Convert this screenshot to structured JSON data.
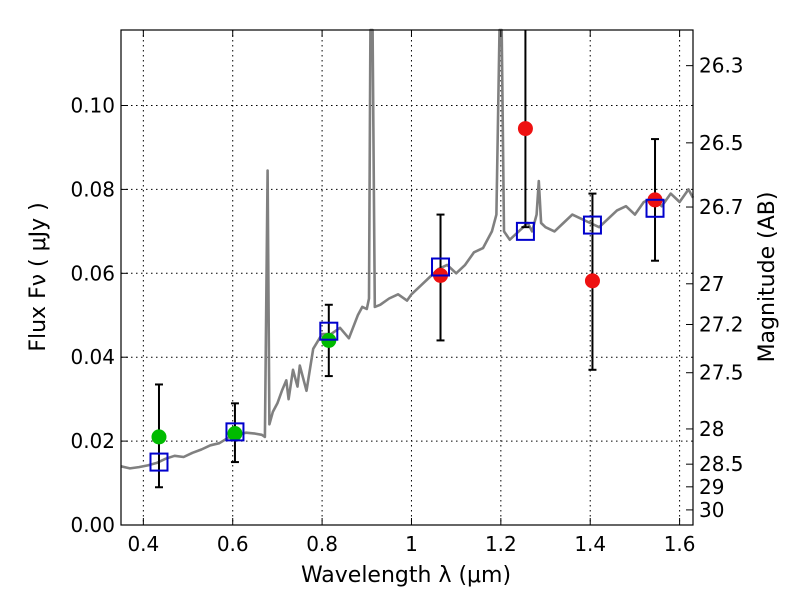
{
  "chart_data": {
    "type": "scatter",
    "title": "",
    "xlabel": "Wavelength  λ (μm)",
    "ylabel": "Flux  Fν  ( μJy )",
    "ylabel_right": "Magnitude (AB)",
    "xlim": [
      0.35,
      1.63
    ],
    "ylim": [
      0.0,
      0.118
    ],
    "x_ticks": [
      0.4,
      0.6,
      0.8,
      1.0,
      1.2,
      1.4,
      1.6
    ],
    "x_tick_labels": [
      "0.4",
      "0.6",
      "0.8",
      "1",
      "1.2",
      "1.4",
      "1.6"
    ],
    "y_ticks": [
      0.0,
      0.02,
      0.04,
      0.06,
      0.08,
      0.1
    ],
    "y_tick_labels": [
      "0.00",
      "0.02",
      "0.04",
      "0.06",
      "0.08",
      "0.10"
    ],
    "right_axis_ticks": [
      {
        "label": "26.3",
        "flux": 0.1095
      },
      {
        "label": "26.5",
        "flux": 0.0911
      },
      {
        "label": "26.7",
        "flux": 0.0758
      },
      {
        "label": "27",
        "flux": 0.0575
      },
      {
        "label": "27.2",
        "flux": 0.0478
      },
      {
        "label": "27.5",
        "flux": 0.0363
      },
      {
        "label": "28",
        "flux": 0.0229
      },
      {
        "label": "28.5",
        "flux": 0.0145
      },
      {
        "label": "29",
        "flux": 0.0091
      },
      {
        "label": "30",
        "flux": 0.0036
      }
    ],
    "grid": true,
    "colors": {
      "spectrum": "#808080",
      "green_points": "#00bb00",
      "red_points": "#ee1111",
      "model_boxes": "#0000cc",
      "error_bars": "#000000"
    },
    "series": [
      {
        "name": "model spectrum",
        "type": "line",
        "points": [
          [
            0.35,
            0.014
          ],
          [
            0.37,
            0.0135
          ],
          [
            0.39,
            0.0138
          ],
          [
            0.41,
            0.0142
          ],
          [
            0.43,
            0.0148
          ],
          [
            0.45,
            0.0158
          ],
          [
            0.47,
            0.0165
          ],
          [
            0.49,
            0.0162
          ],
          [
            0.51,
            0.0172
          ],
          [
            0.53,
            0.018
          ],
          [
            0.55,
            0.019
          ],
          [
            0.57,
            0.0195
          ],
          [
            0.59,
            0.0208
          ],
          [
            0.61,
            0.0215
          ],
          [
            0.63,
            0.022
          ],
          [
            0.65,
            0.0218
          ],
          [
            0.665,
            0.0215
          ],
          [
            0.672,
            0.021
          ],
          [
            0.678,
            0.0845
          ],
          [
            0.682,
            0.024
          ],
          [
            0.69,
            0.027
          ],
          [
            0.7,
            0.029
          ],
          [
            0.71,
            0.032
          ],
          [
            0.72,
            0.0345
          ],
          [
            0.725,
            0.03
          ],
          [
            0.735,
            0.037
          ],
          [
            0.745,
            0.033
          ],
          [
            0.75,
            0.038
          ],
          [
            0.765,
            0.032
          ],
          [
            0.78,
            0.042
          ],
          [
            0.8,
            0.0455
          ],
          [
            0.82,
            0.0455
          ],
          [
            0.84,
            0.047
          ],
          [
            0.86,
            0.0445
          ],
          [
            0.88,
            0.05
          ],
          [
            0.89,
            0.052
          ],
          [
            0.9,
            0.0515
          ],
          [
            0.905,
            0.054
          ],
          [
            0.908,
            0.118
          ],
          [
            0.913,
            0.118
          ],
          [
            0.918,
            0.052
          ],
          [
            0.93,
            0.0525
          ],
          [
            0.95,
            0.054
          ],
          [
            0.97,
            0.055
          ],
          [
            0.99,
            0.0535
          ],
          [
            1.0,
            0.055
          ],
          [
            1.02,
            0.057
          ],
          [
            1.04,
            0.059
          ],
          [
            1.06,
            0.061
          ],
          [
            1.08,
            0.062
          ],
          [
            1.1,
            0.06
          ],
          [
            1.12,
            0.062
          ],
          [
            1.14,
            0.065
          ],
          [
            1.16,
            0.066
          ],
          [
            1.18,
            0.07
          ],
          [
            1.19,
            0.074
          ],
          [
            1.197,
            0.118
          ],
          [
            1.202,
            0.118
          ],
          [
            1.207,
            0.07
          ],
          [
            1.22,
            0.068
          ],
          [
            1.24,
            0.07
          ],
          [
            1.26,
            0.072
          ],
          [
            1.27,
            0.07
          ],
          [
            1.28,
            0.074
          ],
          [
            1.285,
            0.082
          ],
          [
            1.29,
            0.072
          ],
          [
            1.3,
            0.071
          ],
          [
            1.32,
            0.07
          ],
          [
            1.34,
            0.072
          ],
          [
            1.36,
            0.074
          ],
          [
            1.38,
            0.073
          ],
          [
            1.4,
            0.072
          ],
          [
            1.42,
            0.071
          ],
          [
            1.44,
            0.073
          ],
          [
            1.46,
            0.075
          ],
          [
            1.48,
            0.076
          ],
          [
            1.5,
            0.074
          ],
          [
            1.52,
            0.077
          ],
          [
            1.54,
            0.078
          ],
          [
            1.56,
            0.076
          ],
          [
            1.58,
            0.079
          ],
          [
            1.6,
            0.077
          ],
          [
            1.62,
            0.08
          ],
          [
            1.63,
            0.078
          ]
        ]
      },
      {
        "name": "observed (green)",
        "type": "scatter",
        "x": [
          0.435,
          0.605,
          0.815
        ],
        "y": [
          0.021,
          0.0218,
          0.044
        ],
        "yerr_low": [
          0.009,
          0.015,
          0.0355
        ],
        "yerr_high": [
          0.0335,
          0.029,
          0.0525
        ]
      },
      {
        "name": "observed (red)",
        "type": "scatter",
        "x": [
          1.065,
          1.255,
          1.405,
          1.545
        ],
        "y": [
          0.0595,
          0.0945,
          0.0582,
          0.0775
        ],
        "yerr_low": [
          0.044,
          0.071,
          0.037,
          0.063
        ],
        "yerr_high": [
          0.074,
          0.12,
          0.079,
          0.092
        ]
      },
      {
        "name": "model photometry",
        "type": "scatter",
        "marker": "square",
        "x": [
          0.435,
          0.605,
          0.815,
          1.065,
          1.255,
          1.405,
          1.545
        ],
        "y": [
          0.015,
          0.0222,
          0.0462,
          0.0615,
          0.07,
          0.0715,
          0.0755
        ]
      }
    ]
  }
}
